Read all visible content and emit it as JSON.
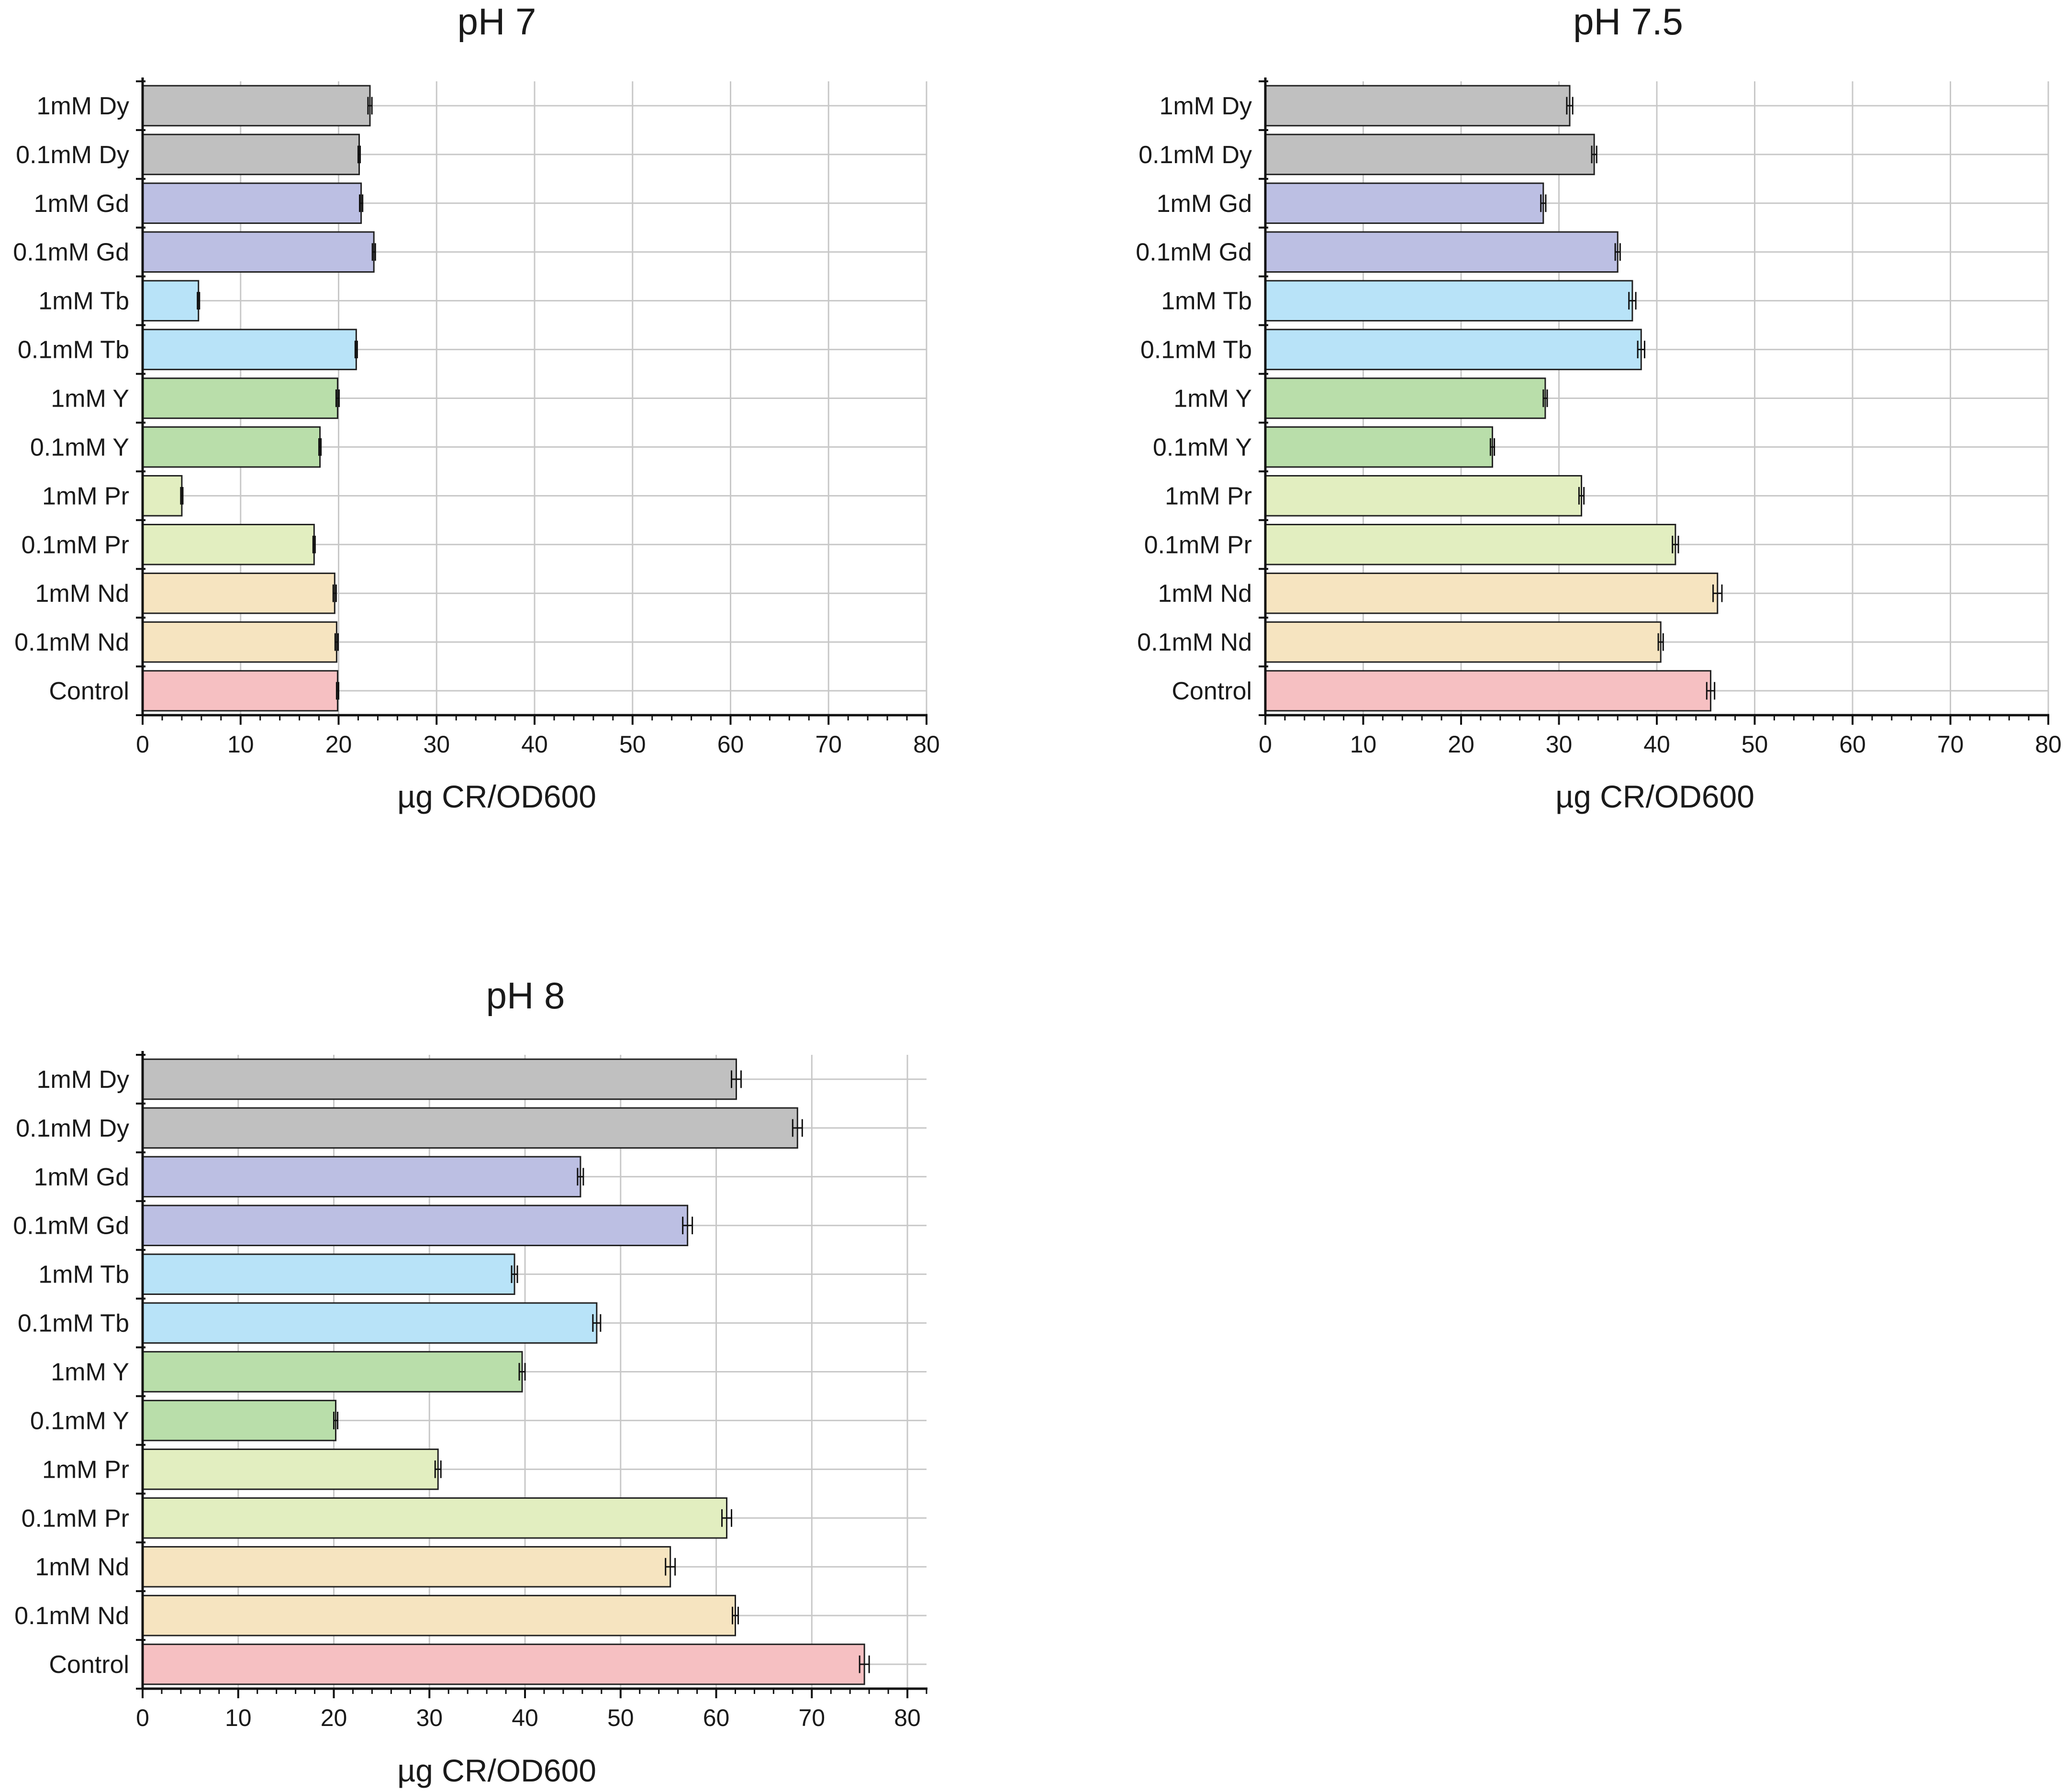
{
  "colors": {
    "Dy": "#c0c0c0",
    "Gd": "#bcbfe3",
    "Tb": "#b8e3f8",
    "Y": "#b9deaa",
    "Pr": "#e2eec0",
    "Nd": "#f6e4c0",
    "Control": "#f6c0c2",
    "grid": "#c8c8c8",
    "axis": "#111111",
    "bar_edge": "#222222"
  },
  "chart_data": [
    {
      "type": "bar",
      "orientation": "horizontal",
      "title": "pH 7",
      "xlabel": "µg CR/OD600",
      "ylabel": "",
      "xlim": [
        0,
        80
      ],
      "xticks": [
        0,
        10,
        20,
        30,
        40,
        50,
        60,
        70,
        80
      ],
      "grid": true,
      "categories": [
        "1mM Dy",
        "0.1mM Dy",
        "1mM Gd",
        "0.1mM Gd",
        "1mM Tb",
        "0.1mM Tb",
        "1mM Y",
        "0.1mM Y",
        "1mM Pr",
        "0.1mM Pr",
        "1mM Nd",
        "0.1mM Nd",
        "Control"
      ],
      "color_keys": [
        "Dy",
        "Dy",
        "Gd",
        "Gd",
        "Tb",
        "Tb",
        "Y",
        "Y",
        "Pr",
        "Pr",
        "Nd",
        "Nd",
        "Control"
      ],
      "values": [
        23.2,
        22.1,
        22.3,
        23.6,
        5.7,
        21.8,
        19.9,
        18.1,
        4.0,
        17.5,
        19.6,
        19.8,
        19.9
      ],
      "errors": [
        0.2,
        0.1,
        0.15,
        0.15,
        0.1,
        0.1,
        0.15,
        0.1,
        0.1,
        0.1,
        0.15,
        0.15,
        0.1
      ]
    },
    {
      "type": "bar",
      "orientation": "horizontal",
      "title": "pH 7.5",
      "xlabel": "µg CR/OD600",
      "ylabel": "",
      "xlim": [
        0,
        80
      ],
      "xticks": [
        0,
        10,
        20,
        30,
        40,
        50,
        60,
        70,
        80
      ],
      "grid": true,
      "categories": [
        "1mM Dy",
        "0.1mM Dy",
        "1mM Gd",
        "0.1mM Gd",
        "1mM Tb",
        "0.1mM Tb",
        "1mM Y",
        "0.1mM Y",
        "1mM Pr",
        "0.1mM Pr",
        "1mM Nd",
        "0.1mM Nd",
        "Control"
      ],
      "color_keys": [
        "Dy",
        "Dy",
        "Gd",
        "Gd",
        "Tb",
        "Tb",
        "Y",
        "Y",
        "Pr",
        "Pr",
        "Nd",
        "Nd",
        "Control"
      ],
      "values": [
        31.1,
        33.6,
        28.4,
        36.0,
        37.5,
        38.4,
        28.6,
        23.2,
        32.3,
        41.9,
        46.2,
        40.4,
        45.5
      ],
      "errors": [
        0.3,
        0.25,
        0.25,
        0.25,
        0.35,
        0.35,
        0.2,
        0.2,
        0.25,
        0.3,
        0.45,
        0.25,
        0.4
      ]
    },
    {
      "type": "bar",
      "orientation": "horizontal",
      "title": "pH 8",
      "xlabel": "µg CR/OD600",
      "ylabel": "",
      "xlim": [
        0,
        82
      ],
      "xticks": [
        0,
        10,
        20,
        30,
        40,
        50,
        60,
        70,
        80
      ],
      "grid": true,
      "categories": [
        "1mM Dy",
        "0.1mM Dy",
        "1mM Gd",
        "0.1mM Gd",
        "1mM Tb",
        "0.1mM Tb",
        "1mM Y",
        "0.1mM Y",
        "1mM Pr",
        "0.1mM Pr",
        "1mM Nd",
        "0.1mM Nd",
        "Control"
      ],
      "color_keys": [
        "Dy",
        "Dy",
        "Gd",
        "Gd",
        "Tb",
        "Tb",
        "Y",
        "Y",
        "Pr",
        "Pr",
        "Nd",
        "Nd",
        "Control"
      ],
      "values": [
        62.1,
        68.5,
        45.8,
        57.0,
        38.9,
        47.5,
        39.7,
        20.2,
        30.9,
        61.1,
        55.2,
        62.0,
        75.5
      ],
      "errors": [
        0.5,
        0.5,
        0.3,
        0.5,
        0.3,
        0.4,
        0.3,
        0.2,
        0.3,
        0.5,
        0.5,
        0.3,
        0.5
      ]
    }
  ]
}
